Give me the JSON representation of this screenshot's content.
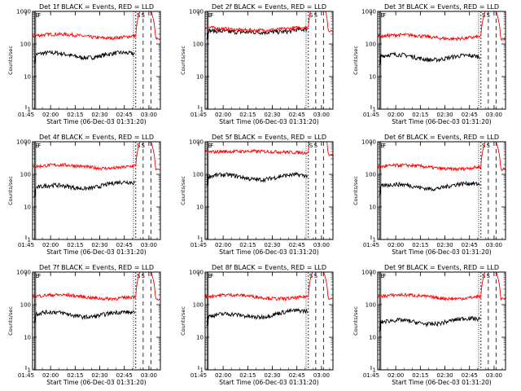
{
  "chart_data": [
    {
      "type": "line",
      "title": "Det 1f BLACK = Events, RED = LLD",
      "xlabel": "Start Time (06-Dec-03 01:31:20)",
      "ylabel": "Counts/sec",
      "yscale": "log",
      "ylim": [
        1,
        1000
      ],
      "yticks": [
        "1",
        "10",
        "100",
        "1000"
      ],
      "xticks": [
        "01:45",
        "02:00",
        "02:15",
        "02:30",
        "02:45",
        "03:00"
      ],
      "xlim_minutes": [
        19,
        97
      ],
      "annotations": [
        "E",
        "F",
        "S",
        "S"
      ],
      "series": [
        {
          "color": "#000000",
          "name": "Events",
          "kind": "events",
          "level": 50,
          "drift": 1.0
        },
        {
          "color": "#ff0000",
          "name": "LLD",
          "kind": "lld",
          "level": 200,
          "drift": 1.0
        }
      ]
    },
    {
      "type": "line",
      "title": "Det 2f BLACK = Events, RED = LLD",
      "xlabel": "Start Time (06-Dec-03 01:31:20)",
      "ylabel": "Counts/sec",
      "yscale": "log",
      "ylim": [
        1,
        1000
      ],
      "yticks": [
        "1",
        "10",
        "100",
        "1000"
      ],
      "xticks": [
        "01:45",
        "02:00",
        "02:15",
        "02:30",
        "02:45",
        "03:00"
      ],
      "xlim_minutes": [
        19,
        97
      ],
      "annotations": [
        "E",
        "F",
        "S",
        "S"
      ],
      "series": [
        {
          "color": "#000000",
          "name": "Events",
          "kind": "events2",
          "level": 260,
          "drift": 1.0
        },
        {
          "color": "#ff0000",
          "name": "LLD",
          "kind": "lld2",
          "level": 330,
          "drift": 1.0
        }
      ]
    },
    {
      "type": "line",
      "title": "Det 3f BLACK = Events, RED = LLD",
      "xlabel": "Start Time (06-Dec-03 01:31:20)",
      "ylabel": "Counts/sec",
      "yscale": "log",
      "ylim": [
        1,
        1000
      ],
      "yticks": [
        "1",
        "10",
        "100",
        "1000"
      ],
      "xticks": [
        "01:45",
        "02:00",
        "02:15",
        "02:30",
        "02:45",
        "03:00"
      ],
      "xlim_minutes": [
        19,
        97
      ],
      "annotations": [
        "E",
        "F",
        "S",
        "S"
      ],
      "series": [
        {
          "color": "#000000",
          "name": "Events",
          "kind": "events",
          "level": 45,
          "drift": 0.9
        },
        {
          "color": "#ff0000",
          "name": "LLD",
          "kind": "lld",
          "level": 190,
          "drift": 1.0
        }
      ]
    },
    {
      "type": "line",
      "title": "Det 4f BLACK = Events, RED = LLD",
      "xlabel": "Start Time (06-Dec-03 01:31:20)",
      "ylabel": "Counts/sec",
      "yscale": "log",
      "ylim": [
        1,
        1000
      ],
      "yticks": [
        "1",
        "10",
        "100",
        "1000"
      ],
      "xticks": [
        "01:45",
        "02:00",
        "02:15",
        "02:30",
        "02:45",
        "03:00"
      ],
      "xlim_minutes": [
        19,
        97
      ],
      "annotations": [
        "E",
        "F",
        "S",
        "S"
      ],
      "series": [
        {
          "color": "#000000",
          "name": "Events",
          "kind": "events",
          "level": 40,
          "drift": 1.4
        },
        {
          "color": "#ff0000",
          "name": "LLD",
          "kind": "lld",
          "level": 190,
          "drift": 1.1
        }
      ]
    },
    {
      "type": "line",
      "title": "Det 5f BLACK = Events, RED = LLD",
      "xlabel": "Start Time (06-Dec-03 01:31:20)",
      "ylabel": "Counts/sec",
      "yscale": "log",
      "ylim": [
        1,
        1000
      ],
      "yticks": [
        "1",
        "10",
        "100",
        "1000"
      ],
      "xticks": [
        "01:45",
        "02:00",
        "02:15",
        "02:30",
        "02:45",
        "03:00"
      ],
      "xlim_minutes": [
        19,
        97
      ],
      "annotations": [
        "E",
        "F",
        "S",
        "S"
      ],
      "series": [
        {
          "color": "#000000",
          "name": "Events",
          "kind": "events",
          "level": 90,
          "drift": 1.0
        },
        {
          "color": "#ff0000",
          "name": "LLD",
          "kind": "lld5",
          "level": 520,
          "drift": 1.0
        }
      ]
    },
    {
      "type": "line",
      "title": "Det 6f BLACK = Events, RED = LLD",
      "xlabel": "Start Time (06-Dec-03 01:31:20)",
      "ylabel": "Counts/sec",
      "yscale": "log",
      "ylim": [
        1,
        1000
      ],
      "yticks": [
        "1",
        "10",
        "100",
        "1000"
      ],
      "xticks": [
        "01:45",
        "02:00",
        "02:15",
        "02:30",
        "02:45",
        "03:00"
      ],
      "xlim_minutes": [
        19,
        97
      ],
      "annotations": [
        "E",
        "F",
        "S",
        "S"
      ],
      "series": [
        {
          "color": "#000000",
          "name": "Events",
          "kind": "events",
          "level": 45,
          "drift": 1.1
        },
        {
          "color": "#ff0000",
          "name": "LLD",
          "kind": "lld",
          "level": 190,
          "drift": 1.0
        }
      ]
    },
    {
      "type": "line",
      "title": "Det 7f BLACK = Events, RED = LLD",
      "xlabel": "Start Time (06-Dec-03 01:31:20)",
      "ylabel": "Counts/sec",
      "yscale": "log",
      "ylim": [
        1,
        1000
      ],
      "yticks": [
        "1",
        "10",
        "100",
        "1000"
      ],
      "xticks": [
        "01:45",
        "02:00",
        "02:15",
        "02:30",
        "02:45",
        "03:00"
      ],
      "xlim_minutes": [
        19,
        97
      ],
      "annotations": [
        "E",
        "F",
        "S",
        "S"
      ],
      "series": [
        {
          "color": "#000000",
          "name": "Events",
          "kind": "events",
          "level": 55,
          "drift": 1.0
        },
        {
          "color": "#ff0000",
          "name": "LLD",
          "kind": "lld",
          "level": 200,
          "drift": 1.0
        }
      ]
    },
    {
      "type": "line",
      "title": "Det 8f BLACK = Events, RED = LLD",
      "xlabel": "Start Time (06-Dec-03 01:31:20)",
      "ylabel": "Counts/sec",
      "yscale": "log",
      "ylim": [
        1,
        1000
      ],
      "yticks": [
        "1",
        "10",
        "100",
        "1000"
      ],
      "xticks": [
        "01:45",
        "02:00",
        "02:15",
        "02:30",
        "02:45",
        "03:00"
      ],
      "xlim_minutes": [
        19,
        97
      ],
      "annotations": [
        "E",
        "F",
        "S",
        "S"
      ],
      "series": [
        {
          "color": "#000000",
          "name": "Events",
          "kind": "events",
          "level": 45,
          "drift": 1.4
        },
        {
          "color": "#ff0000",
          "name": "LLD",
          "kind": "lld",
          "level": 200,
          "drift": 1.0
        }
      ]
    },
    {
      "type": "line",
      "title": "Det 9f BLACK = Events, RED = LLD",
      "xlabel": "Start Time (06-Dec-03 01:31:20)",
      "ylabel": "Counts/sec",
      "yscale": "log",
      "ylim": [
        1,
        1000
      ],
      "yticks": [
        "1",
        "10",
        "100",
        "1000"
      ],
      "xticks": [
        "01:45",
        "02:00",
        "02:15",
        "02:30",
        "02:45",
        "03:00"
      ],
      "xlim_minutes": [
        19,
        97
      ],
      "annotations": [
        "E",
        "F",
        "S",
        "S"
      ],
      "series": [
        {
          "color": "#000000",
          "name": "Events",
          "kind": "events",
          "level": 30,
          "drift": 1.2
        },
        {
          "color": "#ff0000",
          "name": "LLD",
          "kind": "lld",
          "level": 200,
          "drift": 1.0
        }
      ]
    }
  ]
}
